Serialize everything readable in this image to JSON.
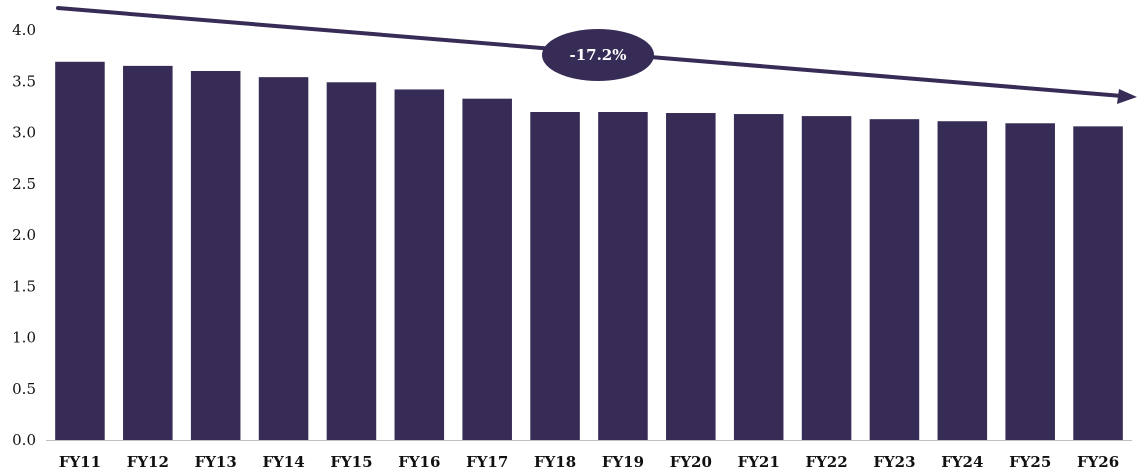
{
  "chart_data": {
    "type": "bar",
    "title": "",
    "xlabel": "",
    "ylabel": "",
    "categories": [
      "FY11",
      "FY12",
      "FY13",
      "FY14",
      "FY15",
      "FY16",
      "FY17",
      "FY18",
      "FY19",
      "FY20",
      "FY21",
      "FY22",
      "FY23",
      "FY24",
      "FY25",
      "FY26"
    ],
    "values": [
      3.69,
      3.65,
      3.6,
      3.54,
      3.49,
      3.42,
      3.33,
      3.2,
      3.2,
      3.19,
      3.18,
      3.16,
      3.13,
      3.11,
      3.09,
      3.06
    ],
    "ylim": [
      0,
      4.0
    ],
    "yticks": [
      "0.0",
      "0.5",
      "1.0",
      "1.5",
      "2.0",
      "2.5",
      "3.0",
      "3.5",
      "4.0"
    ],
    "grid": false,
    "legend": "none",
    "bar_color": "#372c56",
    "annotations": [
      {
        "type": "trend-arrow",
        "label": "-17.2%",
        "color": "#372c56"
      }
    ]
  }
}
